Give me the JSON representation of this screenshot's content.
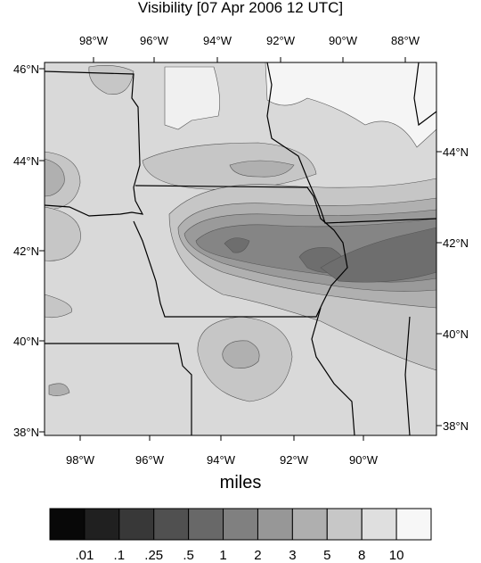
{
  "title": "Visibility [07 Apr 2006 12 UTC]",
  "top_lon_labels": [
    "98°W",
    "96°W",
    "94°W",
    "92°W",
    "90°W",
    "88°W"
  ],
  "bottom_lon_labels": [
    "98°W",
    "96°W",
    "94°W",
    "92°W",
    "90°W"
  ],
  "left_lat_labels": [
    "46°N",
    "44°N",
    "42°N",
    "40°N",
    "38°N"
  ],
  "right_lat_labels": [
    "44°N",
    "42°N",
    "40°N",
    "38°N"
  ],
  "colorbar": {
    "title": "miles",
    "labels": [
      ".01",
      ".1",
      ".25",
      ".5",
      "1",
      "2",
      "3",
      "5",
      "8",
      "10"
    ]
  }
}
